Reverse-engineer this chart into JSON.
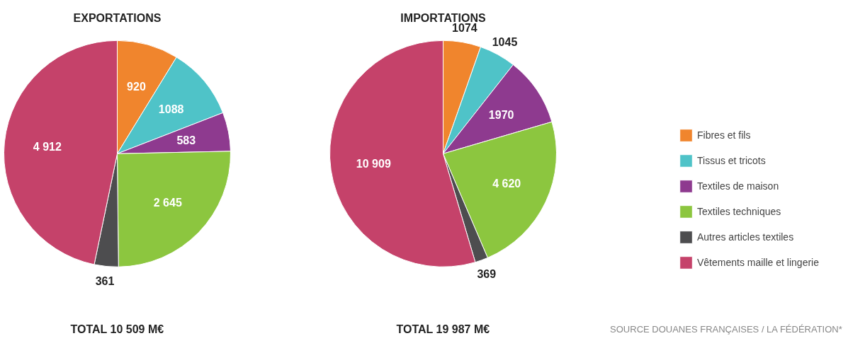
{
  "chart_data": [
    {
      "type": "pie",
      "title": "EXPORTATIONS",
      "categories": [
        "Fibres et fils",
        "Tissus et tricots",
        "Textiles de maison",
        "Textiles techniques",
        "Autres articles textiles",
        "Vêtements maille et lingerie"
      ],
      "values": [
        920,
        1088,
        583,
        2645,
        361,
        4912
      ],
      "colors": [
        "#f0852d",
        "#4fc3c8",
        "#8e3a8f",
        "#8cc63f",
        "#4d4d4f",
        "#c5426a"
      ],
      "value_labels": [
        "920",
        "1088",
        "583",
        "2 645",
        "361",
        "4 912"
      ],
      "annotations": [
        "TOTAL 10 509 M€"
      ],
      "legend": "right"
    },
    {
      "type": "pie",
      "title": "IMPORTATIONS",
      "values": [
        1074,
        1045,
        1970,
        4620,
        369,
        10909
      ],
      "colors": [
        "#f0852d",
        "#4fc3c8",
        "#8e3a8f",
        "#8cc63f",
        "#4d4d4f",
        "#c5426a"
      ],
      "value_labels": [
        "1074",
        "1045",
        "1970",
        "4 620",
        "369",
        "10 909"
      ],
      "annotations": [
        "TOTAL 19 987 M€",
        "SOURCE DOUANES FRANÇAISES / LA FÉDÉRATION*"
      ]
    }
  ]
}
